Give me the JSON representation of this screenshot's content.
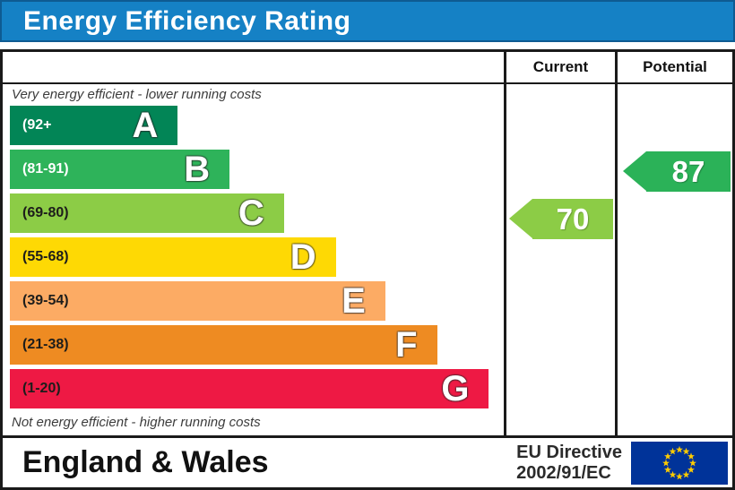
{
  "title": "Energy Efficiency Rating",
  "columns": {
    "current": "Current",
    "potential": "Potential"
  },
  "captions": {
    "top": "Very energy efficient - lower running costs",
    "bottom": "Not energy efficient - higher running costs"
  },
  "bands": [
    {
      "letter": "A",
      "range": "(92+",
      "color": "#028556",
      "range_color": "#ffffff",
      "width_pct": 34
    },
    {
      "letter": "B",
      "range": "(81-91)",
      "color": "#2eb35a",
      "range_color": "#ffffff",
      "width_pct": 44.5
    },
    {
      "letter": "C",
      "range": "(69-80)",
      "color": "#8ccc46",
      "range_color": "#1d1d1b",
      "width_pct": 55.5
    },
    {
      "letter": "D",
      "range": "(55-68)",
      "color": "#fed904",
      "range_color": "#1d1d1b",
      "width_pct": 66
    },
    {
      "letter": "E",
      "range": "(39-54)",
      "color": "#fcab64",
      "range_color": "#1d1d1b",
      "width_pct": 76
    },
    {
      "letter": "F",
      "range": "(21-38)",
      "color": "#ee8b22",
      "range_color": "#1d1d1b",
      "width_pct": 86.5
    },
    {
      "letter": "G",
      "range": "(1-20)",
      "color": "#ee1944",
      "range_color": "#1d1d1b",
      "width_pct": 97
    }
  ],
  "ratings": {
    "current": {
      "value": "70",
      "band": "C",
      "color": "#8ccc46"
    },
    "potential": {
      "value": "87",
      "band": "B",
      "color": "#2bb258"
    }
  },
  "footer": {
    "region": "England & Wales",
    "directive_line1": "EU Directive",
    "directive_line2": "2002/91/EC",
    "eu_flag": {
      "background": "#003399",
      "star_color": "#ffcc00"
    }
  },
  "colors": {
    "title_background": "#1581c5",
    "title_text": "#ffffff",
    "border": "#1a1a1a"
  },
  "chart_data": {
    "type": "bar",
    "title": "Energy Efficiency Rating",
    "orientation": "horizontal",
    "categories": [
      "A",
      "B",
      "C",
      "D",
      "E",
      "F",
      "G"
    ],
    "category_ranges": [
      "92+",
      "81-91",
      "69-80",
      "55-68",
      "39-54",
      "21-38",
      "1-20"
    ],
    "bar_length_pct_of_axis": [
      34,
      44.5,
      55.5,
      66,
      76,
      86.5,
      97
    ],
    "bar_colors": [
      "#028556",
      "#2eb35a",
      "#8ccc46",
      "#fed904",
      "#fcab64",
      "#ee8b22",
      "#ee1944"
    ],
    "annotations": [
      {
        "label": "Current",
        "value": 70,
        "band": "C",
        "color": "#8ccc46"
      },
      {
        "label": "Potential",
        "value": 87,
        "band": "B",
        "color": "#2bb258"
      }
    ],
    "top_axis_note": "Very energy efficient - lower running costs",
    "bottom_axis_note": "Not energy efficient - higher running costs",
    "region": "England & Wales",
    "directive": "EU Directive 2002/91/EC"
  }
}
